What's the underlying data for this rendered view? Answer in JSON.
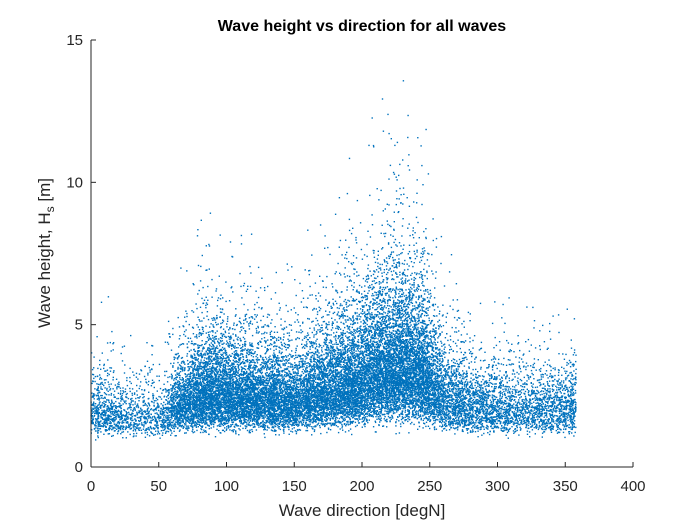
{
  "chart_data": {
    "type": "scatter",
    "title": "Wave height vs direction for all waves",
    "xlabel": "Wave direction [degN]",
    "ylabel_main": "Wave height, H",
    "ylabel_subscript": "s",
    "ylabel_unit": " [m]",
    "xlim": [
      0,
      400
    ],
    "ylim": [
      0,
      15
    ],
    "xticks": [
      0,
      50,
      100,
      150,
      200,
      250,
      300,
      350,
      400
    ],
    "xtick_labels": [
      "0",
      "50",
      "100",
      "150",
      "200",
      "250",
      "300",
      "350",
      "400"
    ],
    "yticks": [
      0,
      5,
      10,
      15
    ],
    "ytick_labels": [
      "0",
      "5",
      "10",
      "15"
    ],
    "grid": false,
    "marker_color": "#0072BD",
    "series": [
      {
        "density_profile": [
          {
            "direction": 0,
            "relative_density": 0.25,
            "typical_height": 1.8,
            "max_height": 5.5
          },
          {
            "direction": 25,
            "relative_density": 0.15,
            "typical_height": 1.7,
            "max_height": 6.5
          },
          {
            "direction": 50,
            "relative_density": 0.12,
            "typical_height": 1.6,
            "max_height": 5.8
          },
          {
            "direction": 65,
            "relative_density": 0.45,
            "typical_height": 2.0,
            "max_height": 7.0
          },
          {
            "direction": 85,
            "relative_density": 0.75,
            "typical_height": 2.5,
            "max_height": 9.1
          },
          {
            "direction": 120,
            "relative_density": 0.65,
            "typical_height": 2.3,
            "max_height": 9.2
          },
          {
            "direction": 150,
            "relative_density": 0.55,
            "typical_height": 2.2,
            "max_height": 8.0
          },
          {
            "direction": 180,
            "relative_density": 0.7,
            "typical_height": 2.6,
            "max_height": 9.5
          },
          {
            "direction": 200,
            "relative_density": 0.85,
            "typical_height": 3.0,
            "max_height": 13.7
          },
          {
            "direction": 225,
            "relative_density": 1.0,
            "typical_height": 3.5,
            "max_height": 14.4
          },
          {
            "direction": 245,
            "relative_density": 0.9,
            "typical_height": 3.2,
            "max_height": 13.0
          },
          {
            "direction": 260,
            "relative_density": 0.45,
            "typical_height": 2.4,
            "max_height": 8.0
          },
          {
            "direction": 280,
            "relative_density": 0.3,
            "typical_height": 2.0,
            "max_height": 6.5
          },
          {
            "direction": 320,
            "relative_density": 0.2,
            "typical_height": 1.9,
            "max_height": 6.0
          },
          {
            "direction": 358,
            "relative_density": 0.25,
            "typical_height": 2.0,
            "max_height": 5.5
          }
        ]
      }
    ]
  }
}
